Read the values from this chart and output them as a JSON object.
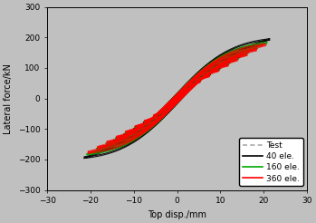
{
  "title": "",
  "xlabel": "Top disp./mm",
  "ylabel": "Lateral force/kN",
  "xlim": [
    -30,
    30
  ],
  "ylim": [
    -300,
    300
  ],
  "xticks": [
    -30,
    -20,
    -10,
    0,
    10,
    20,
    30
  ],
  "yticks": [
    -300,
    -200,
    -100,
    0,
    100,
    200,
    300
  ],
  "background_color": "#c0c0c0",
  "plot_bg_color": "#c0c0c0",
  "legend_labels": [
    "Test",
    "40 ele.",
    "160 ele.",
    "360 ele."
  ],
  "legend_colors": [
    "#aaaaaa",
    "#000000",
    "#00aa00",
    "#ff0000"
  ],
  "legend_styles": [
    "--",
    "-",
    "-",
    "-"
  ],
  "max_disp": 21.0,
  "max_force": 210.0,
  "n_cycles": 9,
  "n_repeats_test": 2,
  "n_repeats_40": 2,
  "n_repeats_160": 2,
  "n_repeats_360": 3,
  "pinch_test": 0.92,
  "pinch_40": 0.9,
  "pinch_160": 0.91,
  "pinch_360": 0.93,
  "amp_scale_test": 1.0,
  "amp_scale_40": 1.02,
  "amp_scale_160": 0.99,
  "amp_scale_360": 0.98,
  "force_scale_test": 1.0,
  "force_scale_40": 1.03,
  "force_scale_160": 0.97,
  "force_scale_360": 0.95
}
